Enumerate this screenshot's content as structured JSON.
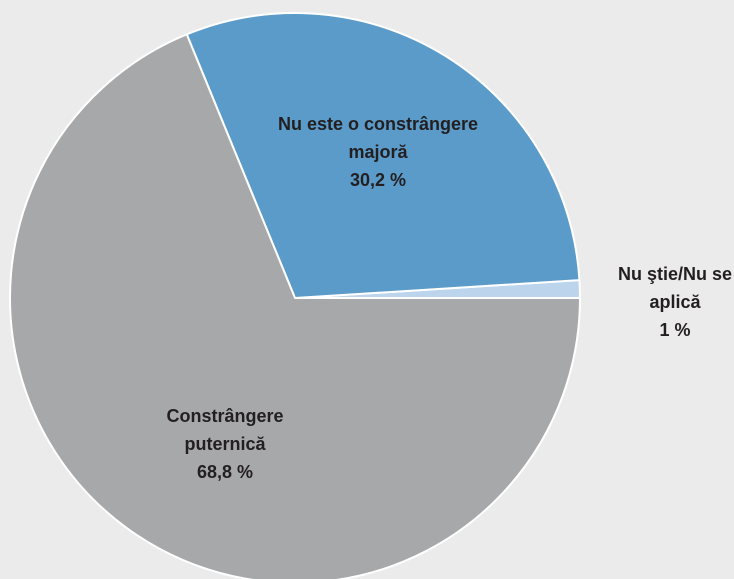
{
  "chart_data": {
    "type": "pie",
    "categories": [
      "Nu ştie/Nu se aplică",
      "Nu este o constrângere majoră",
      "Constrângere puternică"
    ],
    "values": [
      1,
      30.2,
      68.8
    ],
    "value_labels": [
      "1 %",
      "30,2 %",
      "68,8 %"
    ],
    "colors": [
      "#bcd5ec",
      "#5b9bc9",
      "#a7a8aa"
    ]
  }
}
